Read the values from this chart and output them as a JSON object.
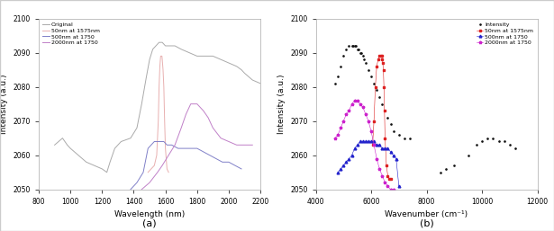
{
  "panel_a": {
    "xlabel": "Wavelength (nm)",
    "ylabel": "Intensity (a.u.)",
    "xlim": [
      800,
      2200
    ],
    "ylim": [
      2050,
      2100
    ],
    "yticks": [
      2050,
      2060,
      2070,
      2080,
      2090,
      2100
    ],
    "xticks": [
      800,
      1000,
      1200,
      1400,
      1600,
      1800,
      2000,
      2200
    ],
    "legend": [
      "Original",
      "50nm at 1575nm",
      "500nm at 1750",
      "2000nm at 1750"
    ],
    "caption": "(a)",
    "curves": {
      "original": {
        "color": "#aaaaaa",
        "x": [
          900,
          950,
          980,
          1000,
          1050,
          1100,
          1150,
          1200,
          1230,
          1250,
          1280,
          1320,
          1380,
          1420,
          1450,
          1480,
          1500,
          1520,
          1540,
          1560,
          1580,
          1600,
          1620,
          1640,
          1660,
          1700,
          1750,
          1800,
          1850,
          1900,
          1950,
          2000,
          2050,
          2080,
          2100,
          2150,
          2200
        ],
        "y": [
          2063,
          2065,
          2063,
          2062,
          2060,
          2058,
          2057,
          2056,
          2055,
          2058,
          2062,
          2064,
          2065,
          2068,
          2075,
          2083,
          2088,
          2091,
          2092,
          2093,
          2093,
          2092,
          2092,
          2092,
          2092,
          2091,
          2090,
          2089,
          2089,
          2089,
          2088,
          2087,
          2086,
          2085,
          2084,
          2082,
          2081
        ]
      },
      "filter50": {
        "color": "#e8b0b0",
        "x": [
          1490,
          1510,
          1530,
          1545,
          1555,
          1560,
          1565,
          1570,
          1572,
          1574,
          1576,
          1578,
          1580,
          1585,
          1590,
          1595,
          1600,
          1610,
          1620
        ],
        "y": [
          2055,
          2056,
          2057,
          2060,
          2070,
          2080,
          2086,
          2089,
          2089,
          2089,
          2089,
          2089,
          2088,
          2085,
          2080,
          2070,
          2062,
          2056,
          2055
        ]
      },
      "filter500": {
        "color": "#8080c8",
        "x": [
          1380,
          1420,
          1460,
          1490,
          1510,
          1530,
          1550,
          1570,
          1590,
          1610,
          1640,
          1680,
          1720,
          1760,
          1800,
          1840,
          1880,
          1920,
          1960,
          2000,
          2040,
          2080
        ],
        "y": [
          2050,
          2052,
          2055,
          2062,
          2063,
          2064,
          2064,
          2064,
          2064,
          2063,
          2063,
          2062,
          2062,
          2062,
          2062,
          2061,
          2060,
          2059,
          2058,
          2058,
          2057,
          2056
        ]
      },
      "filter2000": {
        "color": "#c080c8",
        "x": [
          1450,
          1500,
          1550,
          1580,
          1620,
          1660,
          1700,
          1730,
          1760,
          1800,
          1840,
          1870,
          1900,
          1950,
          2000,
          2050,
          2100,
          2150
        ],
        "y": [
          2050,
          2052,
          2055,
          2057,
          2060,
          2063,
          2068,
          2072,
          2075,
          2075,
          2073,
          2071,
          2068,
          2065,
          2064,
          2063,
          2063,
          2063
        ]
      }
    }
  },
  "panel_b": {
    "xlabel": "Wavenumber (cm⁻¹)",
    "ylabel": "Intensity (a.u.)",
    "xlim": [
      4000,
      12000
    ],
    "ylim": [
      2050,
      2100
    ],
    "yticks": [
      2050,
      2060,
      2070,
      2080,
      2090,
      2100
    ],
    "xticks": [
      4000,
      6000,
      8000,
      10000,
      12000
    ],
    "legend": [
      "Intensity",
      "50nm at 1575nm",
      "500nm at 1750",
      "2000nm at 1750"
    ],
    "caption": "(b)",
    "curves": {
      "original": {
        "color": "#111111",
        "marker": ".",
        "x": [
          4700,
          4800,
          4900,
          5000,
          5100,
          5200,
          5300,
          5350,
          5400,
          5450,
          5500,
          5550,
          5600,
          5650,
          5700,
          5750,
          5800,
          5900,
          6000,
          6100,
          6200,
          6300,
          6400,
          6500,
          6600,
          6700,
          6800,
          7000,
          7200,
          7400,
          8500,
          8700,
          9000,
          9500,
          9800,
          10000,
          10200,
          10400,
          10600,
          10800,
          11000,
          11200
        ],
        "y": [
          2081,
          2083,
          2086,
          2089,
          2091,
          2092,
          2092,
          2092,
          2092,
          2092,
          2091,
          2091,
          2090,
          2090,
          2089,
          2088,
          2087,
          2085,
          2083,
          2081,
          2079,
          2077,
          2075,
          2073,
          2071,
          2069,
          2067,
          2066,
          2065,
          2065,
          2055,
          2056,
          2057,
          2060,
          2063,
          2064,
          2065,
          2065,
          2064,
          2064,
          2063,
          2062
        ]
      },
      "filter50": {
        "color": "#dd2222",
        "marker": "s",
        "x": [
          6050,
          6100,
          6150,
          6200,
          6250,
          6300,
          6350,
          6380,
          6400,
          6420,
          6440,
          6460,
          6480,
          6500,
          6550,
          6600,
          6650,
          6700
        ],
        "y": [
          2063,
          2070,
          2080,
          2086,
          2088,
          2089,
          2089,
          2089,
          2088,
          2087,
          2085,
          2080,
          2073,
          2065,
          2057,
          2054,
          2053,
          2053
        ]
      },
      "filter500": {
        "color": "#2222cc",
        "marker": "^",
        "x": [
          4800,
          4900,
          5000,
          5100,
          5200,
          5300,
          5400,
          5500,
          5600,
          5700,
          5800,
          5900,
          6000,
          6100,
          6200,
          6300,
          6400,
          6500,
          6600,
          6700,
          6800,
          6900,
          7000
        ],
        "y": [
          2055,
          2056,
          2057,
          2058,
          2059,
          2060,
          2062,
          2063,
          2064,
          2064,
          2064,
          2064,
          2064,
          2064,
          2063,
          2063,
          2062,
          2062,
          2062,
          2061,
          2060,
          2059,
          2051
        ]
      },
      "filter2000": {
        "color": "#cc22cc",
        "marker": "*",
        "x": [
          4700,
          4800,
          4900,
          5000,
          5100,
          5200,
          5300,
          5400,
          5500,
          5600,
          5700,
          5800,
          5900,
          6000,
          6100,
          6200,
          6300,
          6400,
          6500,
          6600,
          6700,
          6800
        ],
        "y": [
          2065,
          2066,
          2068,
          2070,
          2072,
          2073,
          2075,
          2076,
          2076,
          2075,
          2074,
          2072,
          2070,
          2067,
          2063,
          2059,
          2056,
          2054,
          2052,
          2051,
          2050,
          2050
        ]
      }
    }
  },
  "fig_border_color": "#cccccc",
  "fig_width": 6.15,
  "fig_height": 2.57,
  "dpi": 100
}
